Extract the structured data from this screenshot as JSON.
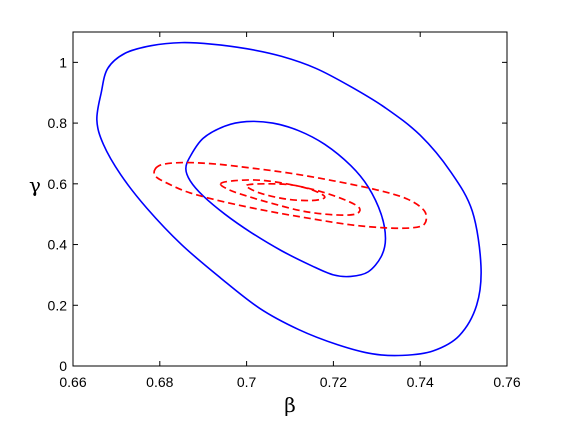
{
  "chart_data": {
    "type": "line",
    "title": "",
    "xlabel": "β",
    "ylabel": "γ",
    "xlim": [
      0.66,
      0.76
    ],
    "ylim": [
      0,
      1.1
    ],
    "xticks": [
      0.66,
      0.68,
      0.7,
      0.72,
      0.74,
      0.76
    ],
    "xtick_labels": [
      "0.66",
      "0.68",
      "0.7",
      "0.72",
      "0.74",
      "0.76"
    ],
    "yticks": [
      0,
      0.2,
      0.4,
      0.6,
      0.8,
      1
    ],
    "ytick_labels": [
      "0",
      "0.2",
      "0.4",
      "0.6",
      "0.8",
      "1"
    ],
    "grid": false,
    "legend": false,
    "series": [
      {
        "style": "solid",
        "color": "#0000ff",
        "contours": [
          {
            "x": [
              0.6665,
              0.668,
              0.672,
              0.678,
              0.685,
              0.692,
              0.7,
              0.708,
              0.716,
              0.724,
              0.732,
              0.74,
              0.747,
              0.752,
              0.754,
              0.753,
              0.749,
              0.743,
              0.736,
              0.729,
              0.721,
              0.712,
              0.703,
              0.694,
              0.685,
              0.677,
              0.671,
              0.667,
              0.6655,
              0.6665
            ],
            "y": [
              0.9,
              0.98,
              1.03,
              1.055,
              1.065,
              1.06,
              1.045,
              1.02,
              0.98,
              0.92,
              0.85,
              0.76,
              0.64,
              0.51,
              0.33,
              0.2,
              0.1,
              0.05,
              0.035,
              0.04,
              0.07,
              0.12,
              0.19,
              0.29,
              0.4,
              0.52,
              0.63,
              0.73,
              0.81,
              0.9
            ]
          },
          {
            "x": [
              0.687,
              0.69,
              0.695,
              0.7,
              0.706,
              0.712,
              0.718,
              0.724,
              0.728,
              0.731,
              0.732,
              0.731,
              0.728,
              0.724,
              0.72,
              0.715,
              0.708,
              0.701,
              0.695,
              0.69,
              0.687,
              0.686,
              0.687
            ],
            "y": [
              0.69,
              0.75,
              0.79,
              0.805,
              0.8,
              0.775,
              0.73,
              0.66,
              0.59,
              0.5,
              0.42,
              0.36,
              0.31,
              0.295,
              0.3,
              0.33,
              0.38,
              0.44,
              0.5,
              0.56,
              0.61,
              0.65,
              0.69
            ]
          }
        ]
      },
      {
        "style": "dashed",
        "color": "#ff0000",
        "contours": [
          {
            "x": [
              0.679,
              0.681,
              0.686,
              0.693,
              0.701,
              0.71,
              0.72,
              0.73,
              0.737,
              0.741,
              0.741,
              0.738,
              0.732,
              0.724,
              0.715,
              0.705,
              0.695,
              0.687,
              0.682,
              0.679,
              0.679
            ],
            "y": [
              0.65,
              0.665,
              0.67,
              0.665,
              0.652,
              0.635,
              0.61,
              0.58,
              0.55,
              0.51,
              0.468,
              0.455,
              0.455,
              0.465,
              0.485,
              0.51,
              0.54,
              0.57,
              0.6,
              0.625,
              0.65
            ]
          },
          {
            "x": [
              0.694,
              0.697,
              0.703,
              0.71,
              0.717,
              0.723,
              0.726,
              0.725,
              0.72,
              0.713,
              0.706,
              0.7,
              0.696,
              0.694
            ],
            "y": [
              0.6,
              0.61,
              0.612,
              0.598,
              0.575,
              0.545,
              0.52,
              0.5,
              0.498,
              0.51,
              0.535,
              0.56,
              0.58,
              0.6
            ]
          },
          {
            "x": [
              0.7,
              0.705,
              0.711,
              0.716,
              0.718,
              0.715,
              0.709,
              0.703,
              0.7
            ],
            "y": [
              0.595,
              0.6,
              0.595,
              0.575,
              0.555,
              0.545,
              0.55,
              0.57,
              0.595
            ]
          }
        ]
      }
    ]
  }
}
